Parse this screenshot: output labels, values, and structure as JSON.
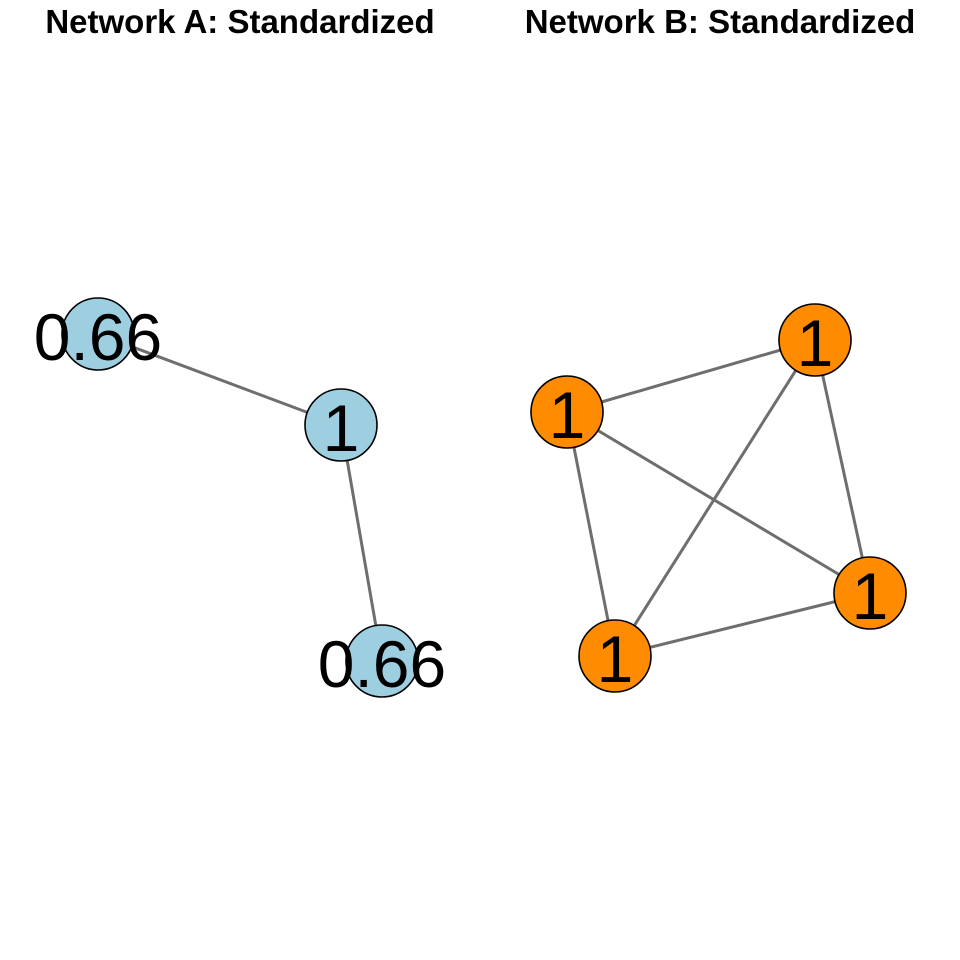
{
  "network_a": {
    "title": "Network A: Standardized",
    "node_color": "#9ecfe0",
    "nodes": [
      {
        "id": "a1",
        "label": "0.66"
      },
      {
        "id": "a2",
        "label": "1"
      },
      {
        "id": "a3",
        "label": "0.66"
      }
    ],
    "edges": [
      {
        "from": "a1",
        "to": "a2"
      },
      {
        "from": "a2",
        "to": "a3"
      }
    ]
  },
  "network_b": {
    "title": "Network B: Standardized",
    "node_color": "#ff8c00",
    "nodes": [
      {
        "id": "b1",
        "label": "1"
      },
      {
        "id": "b2",
        "label": "1"
      },
      {
        "id": "b3",
        "label": "1"
      },
      {
        "id": "b4",
        "label": "1"
      }
    ],
    "edges": [
      {
        "from": "b1",
        "to": "b2"
      },
      {
        "from": "b1",
        "to": "b3"
      },
      {
        "from": "b1",
        "to": "b4"
      },
      {
        "from": "b2",
        "to": "b3"
      },
      {
        "from": "b2",
        "to": "b4"
      },
      {
        "from": "b3",
        "to": "b4"
      }
    ]
  },
  "colors": {
    "edge": "#6e6e6e",
    "node_border": "#000000",
    "label": "#000000"
  }
}
